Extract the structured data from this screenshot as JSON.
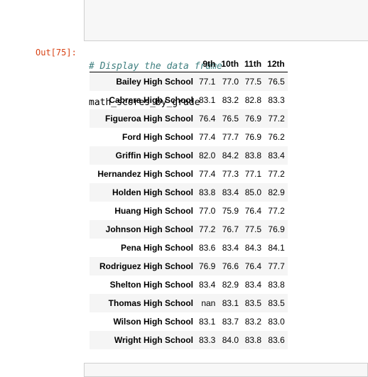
{
  "code_cell": {
    "cut_line": "  _  _  _",
    "comment": "# Display the data frame",
    "code_line": "math_scores_by_grade"
  },
  "output_prompt": "Out[75]:",
  "table": {
    "columns": [
      "9th",
      "10th",
      "11th",
      "12th"
    ],
    "rows": [
      {
        "school": "Bailey High School",
        "values": [
          "77.1",
          "77.0",
          "77.5",
          "76.5"
        ]
      },
      {
        "school": "Cabrera High School",
        "values": [
          "83.1",
          "83.2",
          "82.8",
          "83.3"
        ]
      },
      {
        "school": "Figueroa High School",
        "values": [
          "76.4",
          "76.5",
          "76.9",
          "77.2"
        ]
      },
      {
        "school": "Ford High School",
        "values": [
          "77.4",
          "77.7",
          "76.9",
          "76.2"
        ]
      },
      {
        "school": "Griffin High School",
        "values": [
          "82.0",
          "84.2",
          "83.8",
          "83.4"
        ]
      },
      {
        "school": "Hernandez High School",
        "values": [
          "77.4",
          "77.3",
          "77.1",
          "77.2"
        ]
      },
      {
        "school": "Holden High School",
        "values": [
          "83.8",
          "83.4",
          "85.0",
          "82.9"
        ]
      },
      {
        "school": "Huang High School",
        "values": [
          "77.0",
          "75.9",
          "76.4",
          "77.2"
        ]
      },
      {
        "school": "Johnson High School",
        "values": [
          "77.2",
          "76.7",
          "77.5",
          "76.9"
        ]
      },
      {
        "school": "Pena High School",
        "values": [
          "83.6",
          "83.4",
          "84.3",
          "84.1"
        ]
      },
      {
        "school": "Rodriguez High School",
        "values": [
          "76.9",
          "76.6",
          "76.4",
          "77.7"
        ]
      },
      {
        "school": "Shelton High School",
        "values": [
          "83.4",
          "82.9",
          "83.4",
          "83.8"
        ]
      },
      {
        "school": "Thomas High School",
        "values": [
          "nan",
          "83.1",
          "83.5",
          "83.5"
        ]
      },
      {
        "school": "Wilson High School",
        "values": [
          "83.1",
          "83.7",
          "83.2",
          "83.0"
        ]
      },
      {
        "school": "Wright High School",
        "values": [
          "83.3",
          "84.0",
          "83.8",
          "83.6"
        ]
      }
    ]
  }
}
